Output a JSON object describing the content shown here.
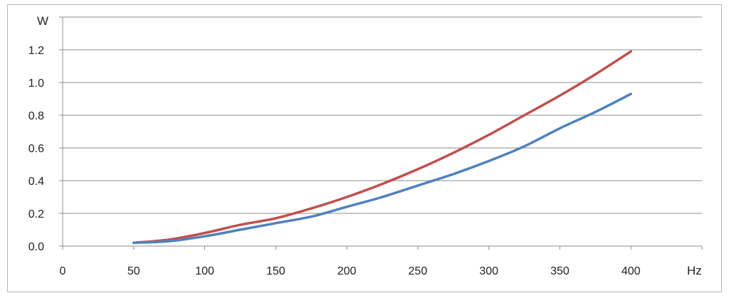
{
  "chart_data": {
    "type": "line",
    "title": "",
    "xlabel": "Hz",
    "ylabel": "W",
    "xlim": [
      0,
      450
    ],
    "ylim": [
      0,
      1.4
    ],
    "grid": "horizontal",
    "legend": "none",
    "x_ticks": [
      0,
      50,
      100,
      150,
      200,
      250,
      300,
      350,
      400
    ],
    "x_tick_labels": [
      "0",
      "50",
      "100",
      "150",
      "200",
      "250",
      "300",
      "350",
      "400"
    ],
    "y_ticks": [
      0,
      0.2,
      0.4,
      0.6,
      0.8,
      1.0,
      1.2
    ],
    "y_tick_labels": [
      "0.0",
      "0.2",
      "0.4",
      "0.6",
      "0.8",
      "1.0",
      "1.2"
    ],
    "x": [
      50,
      75,
      100,
      125,
      150,
      175,
      200,
      225,
      250,
      275,
      300,
      325,
      350,
      375,
      400
    ],
    "series": [
      {
        "color": "#c0504d",
        "values": [
          0.02,
          0.04,
          0.08,
          0.13,
          0.17,
          0.23,
          0.3,
          0.38,
          0.47,
          0.57,
          0.68,
          0.8,
          0.92,
          1.05,
          1.19
        ]
      },
      {
        "color": "#4f81bd",
        "values": [
          0.02,
          0.03,
          0.06,
          0.1,
          0.14,
          0.18,
          0.24,
          0.3,
          0.37,
          0.44,
          0.52,
          0.61,
          0.72,
          0.82,
          0.93
        ]
      }
    ]
  }
}
